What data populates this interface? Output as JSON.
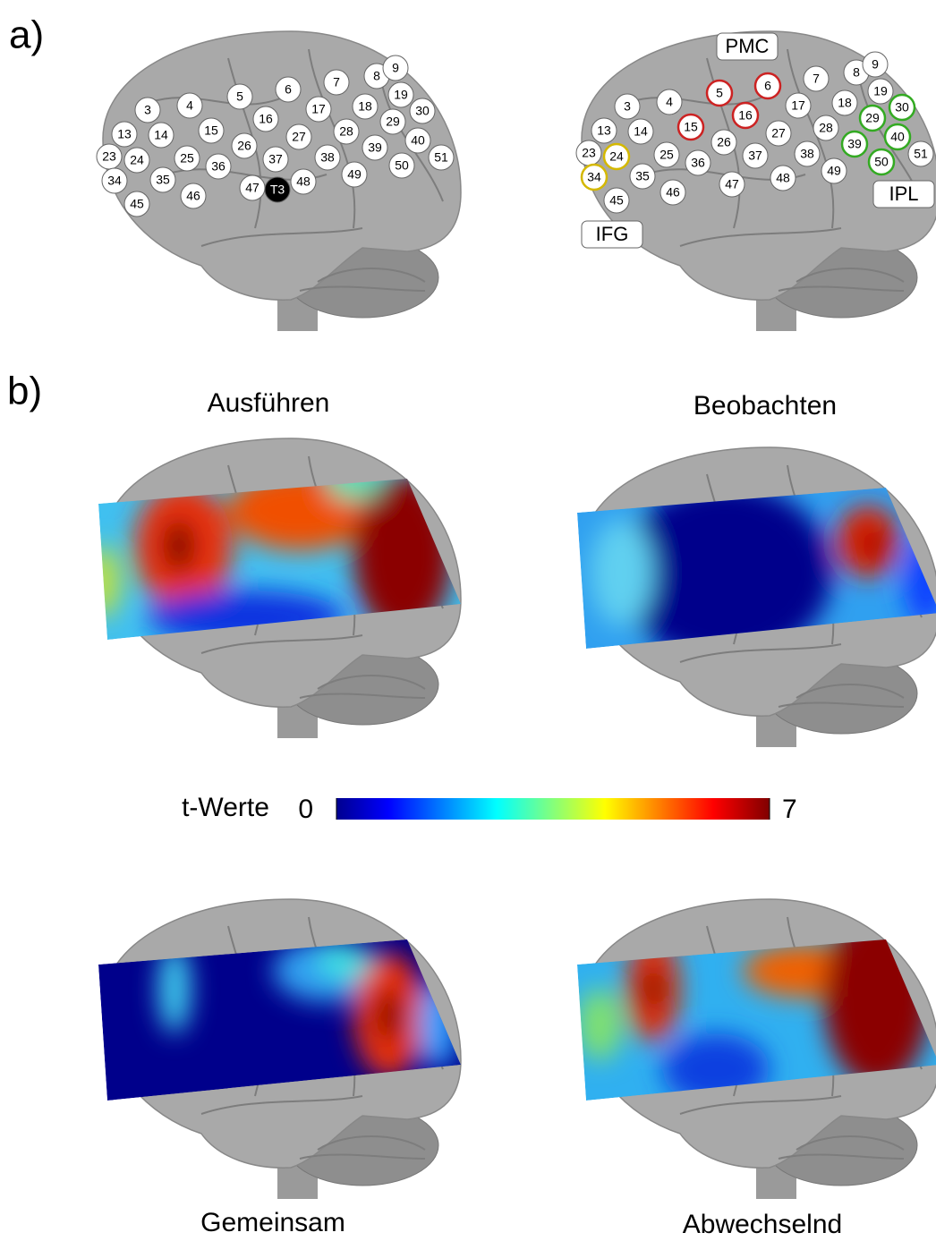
{
  "panel_a": {
    "label": "a)",
    "left_channels": [
      {
        "label": "3"
      },
      {
        "label": "4"
      },
      {
        "label": "5"
      },
      {
        "label": "6"
      },
      {
        "label": "7"
      },
      {
        "label": "8"
      },
      {
        "label": "9"
      },
      {
        "label": "13"
      },
      {
        "label": "14"
      },
      {
        "label": "15"
      },
      {
        "label": "16"
      },
      {
        "label": "17"
      },
      {
        "label": "18"
      },
      {
        "label": "19"
      },
      {
        "label": "23"
      },
      {
        "label": "24"
      },
      {
        "label": "25"
      },
      {
        "label": "26"
      },
      {
        "label": "27"
      },
      {
        "label": "28"
      },
      {
        "label": "29"
      },
      {
        "label": "30"
      },
      {
        "label": "34"
      },
      {
        "label": "35"
      },
      {
        "label": "36"
      },
      {
        "label": "37"
      },
      {
        "label": "38"
      },
      {
        "label": "39"
      },
      {
        "label": "40"
      },
      {
        "label": "45"
      },
      {
        "label": "46"
      },
      {
        "label": "47"
      },
      {
        "label": "48"
      },
      {
        "label": "49"
      },
      {
        "label": "50"
      },
      {
        "label": "51"
      },
      {
        "label": "T3",
        "fill": "#000000"
      }
    ],
    "right_channels": [
      {
        "label": "3"
      },
      {
        "label": "4"
      },
      {
        "label": "5",
        "ring": "#cc2222"
      },
      {
        "label": "6",
        "ring": "#cc2222"
      },
      {
        "label": "7"
      },
      {
        "label": "8"
      },
      {
        "label": "9"
      },
      {
        "label": "13"
      },
      {
        "label": "14"
      },
      {
        "label": "15",
        "ring": "#cc2222"
      },
      {
        "label": "16",
        "ring": "#cc2222"
      },
      {
        "label": "17"
      },
      {
        "label": "18"
      },
      {
        "label": "19"
      },
      {
        "label": "23"
      },
      {
        "label": "24",
        "ring": "#d4b800"
      },
      {
        "label": "25"
      },
      {
        "label": "26"
      },
      {
        "label": "27"
      },
      {
        "label": "28"
      },
      {
        "label": "29",
        "ring": "#33aa22"
      },
      {
        "label": "30",
        "ring": "#33aa22"
      },
      {
        "label": "34",
        "ring": "#d4b800"
      },
      {
        "label": "35"
      },
      {
        "label": "36"
      },
      {
        "label": "37"
      },
      {
        "label": "38"
      },
      {
        "label": "39",
        "ring": "#33aa22"
      },
      {
        "label": "40",
        "ring": "#33aa22"
      },
      {
        "label": "45"
      },
      {
        "label": "46"
      },
      {
        "label": "47"
      },
      {
        "label": "48"
      },
      {
        "label": "49"
      },
      {
        "label": "50",
        "ring": "#33aa22"
      },
      {
        "label": "51"
      }
    ],
    "regions": [
      {
        "label": "PMC"
      },
      {
        "label": "IFG"
      },
      {
        "label": "IPL"
      }
    ]
  },
  "panel_b": {
    "label": "b)",
    "maps": [
      {
        "title": "Ausführen"
      },
      {
        "title": "Beobachten"
      },
      {
        "title": "Gemeinsam"
      },
      {
        "title": "Abwechselnd"
      }
    ],
    "colorbar": {
      "label": "t-Werte",
      "min": 0,
      "max": 7
    }
  }
}
